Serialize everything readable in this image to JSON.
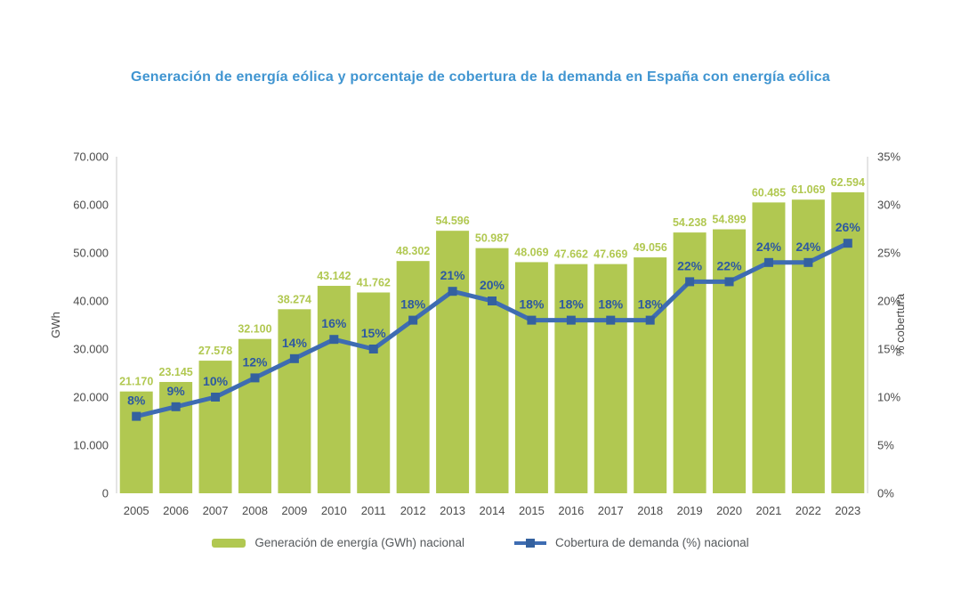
{
  "title": "Generación de energía eólica y porcentaje de cobertura de la demanda en España con energía eólica",
  "colors": {
    "title": "#4095d1",
    "bar": "#b1c851",
    "bar_label": "#b1c851",
    "line": "#3e6cb2",
    "marker": "#34619f",
    "pct_label": "#2d59a1",
    "axis_text": "#4b4b4b",
    "axis_line": "#dcdcdc",
    "legend_text": "#54585b",
    "background": "#ffffff"
  },
  "chart_data": {
    "type": "bar",
    "subtype": "bar-with-line-overlay",
    "categories": [
      "2005",
      "2006",
      "2007",
      "2008",
      "2009",
      "2010",
      "2011",
      "2012",
      "2013",
      "2014",
      "2015",
      "2016",
      "2017",
      "2018",
      "2019",
      "2020",
      "2021",
      "2022",
      "2023"
    ],
    "series": [
      {
        "name": "Generación de energía (GWh) nacional",
        "type": "bar",
        "axis": "left",
        "values": [
          21170,
          23145,
          27578,
          32100,
          38274,
          43142,
          41762,
          48302,
          54596,
          50987,
          48069,
          47662,
          47669,
          49056,
          54238,
          54899,
          60485,
          61069,
          62594
        ],
        "labels": [
          "21.170",
          "23.145",
          "27.578",
          "32.100",
          "38.274",
          "43.142",
          "41.762",
          "48.302",
          "54.596",
          "50.987",
          "48.069",
          "47.662",
          "47.669",
          "49.056",
          "54.238",
          "54.899",
          "60.485",
          "61.069",
          "62.594"
        ]
      },
      {
        "name": "Cobertura de demanda (%) nacional",
        "type": "line",
        "axis": "right",
        "values": [
          8,
          9,
          10,
          12,
          14,
          16,
          15,
          18,
          21,
          20,
          18,
          18,
          18,
          18,
          22,
          22,
          24,
          24,
          26
        ],
        "labels": [
          "8%",
          "9%",
          "10%",
          "12%",
          "14%",
          "16%",
          "15%",
          "18%",
          "21%",
          "20%",
          "18%",
          "18%",
          "18%",
          "18%",
          "22%",
          "22%",
          "24%",
          "24%",
          "26%"
        ]
      }
    ],
    "left_axis": {
      "label": "GWh",
      "min": 0,
      "max": 70000,
      "ticks": [
        "0",
        "10.000",
        "20.000",
        "30.000",
        "40.000",
        "50.000",
        "60.000",
        "70.000"
      ]
    },
    "right_axis": {
      "label": "% cobertura",
      "min": 0,
      "max": 35,
      "ticks": [
        "0%",
        "5%",
        "10%",
        "15%",
        "20%",
        "25%",
        "30%",
        "35%"
      ]
    },
    "grid": "off",
    "legend_position": "bottom-center"
  }
}
